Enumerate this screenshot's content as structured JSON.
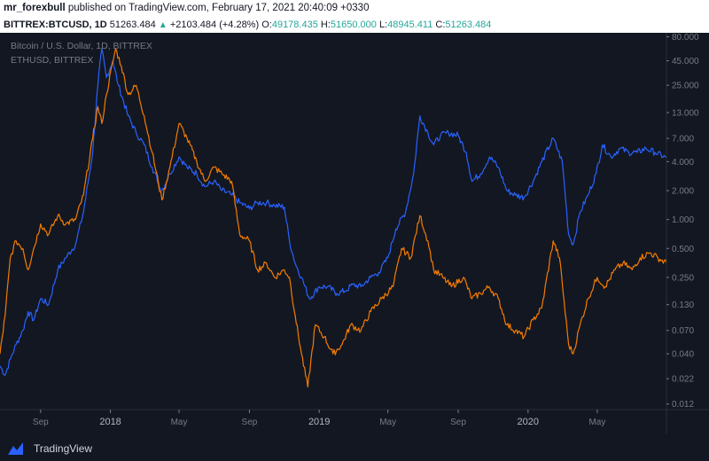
{
  "header": {
    "author": "mr_forexbull",
    "published_text": "published on TradingView.com, February 17, 2021 20:40:09 +0330"
  },
  "quote": {
    "symbol": "BITTREX:BTCUSD, 1D",
    "last": "51263.484",
    "change": "+2103.484 (+4.28%)",
    "o_label": "O:",
    "o": "49178.435",
    "h_label": "H:",
    "h": "51650.000",
    "l_label": "L:",
    "l": "48945.411",
    "c_label": "C:",
    "c": "51263.484"
  },
  "footer": {
    "brand": "TradingView"
  },
  "colors": {
    "btc_series": "#2962ff",
    "eth_series": "#f57c00",
    "background": "#131722",
    "axis_text": "#787b86"
  },
  "chart_data": {
    "type": "line",
    "legend": [
      "Bitcoin / U.S. Dollar, 1D, BITTREX",
      "ETHUSD, BITTREX"
    ],
    "y_scale": "log",
    "y_ticks": [
      "80.000",
      "45.000",
      "25.000",
      "13.000",
      "7.000",
      "4.000",
      "2.000",
      "1.000",
      "0.500",
      "0.250",
      "0.130",
      "0.070",
      "0.040",
      "0.022",
      "0.012"
    ],
    "y_tick_values": [
      80,
      45,
      25,
      13,
      7,
      4,
      2,
      1,
      0.5,
      0.25,
      0.13,
      0.07,
      0.04,
      0.022,
      0.012
    ],
    "ylim": [
      0.0105,
      88
    ],
    "x_ticks": [
      "Sep",
      "2018",
      "May",
      "Sep",
      "2019",
      "May",
      "Sep",
      "2020",
      "May"
    ],
    "x_tick_dates": [
      "2017-09-01",
      "2018-01-01",
      "2018-05-01",
      "2018-09-01",
      "2019-01-01",
      "2019-05-01",
      "2019-09-01",
      "2020-01-01",
      "2020-05-01"
    ],
    "xlim": [
      "2017-06-22",
      "2020-08-30"
    ],
    "series": [
      {
        "name": "Bitcoin / U.S. Dollar, 1D, BITTREX",
        "points": [
          [
            "2017-06-22",
            0.03
          ],
          [
            "2017-07-01",
            0.024
          ],
          [
            "2017-07-10",
            0.035
          ],
          [
            "2017-07-20",
            0.05
          ],
          [
            "2017-08-01",
            0.07
          ],
          [
            "2017-08-10",
            0.11
          ],
          [
            "2017-08-20",
            0.09
          ],
          [
            "2017-09-01",
            0.15
          ],
          [
            "2017-09-15",
            0.13
          ],
          [
            "2017-10-01",
            0.3
          ],
          [
            "2017-10-15",
            0.4
          ],
          [
            "2017-11-01",
            0.55
          ],
          [
            "2017-11-15",
            1.2
          ],
          [
            "2017-12-01",
            5.0
          ],
          [
            "2017-12-10",
            25.0
          ],
          [
            "2017-12-17",
            60.0
          ],
          [
            "2017-12-25",
            30.0
          ],
          [
            "2018-01-05",
            45.0
          ],
          [
            "2018-01-15",
            25.0
          ],
          [
            "2018-02-01",
            12.0
          ],
          [
            "2018-02-15",
            8.0
          ],
          [
            "2018-03-01",
            6.0
          ],
          [
            "2018-03-15",
            3.5
          ],
          [
            "2018-04-01",
            2.0
          ],
          [
            "2018-04-15",
            3.0
          ],
          [
            "2018-05-01",
            4.5
          ],
          [
            "2018-05-15",
            3.5
          ],
          [
            "2018-06-01",
            3.0
          ],
          [
            "2018-06-15",
            2.2
          ],
          [
            "2018-07-01",
            2.5
          ],
          [
            "2018-07-15",
            2.0
          ],
          [
            "2018-08-01",
            1.8
          ],
          [
            "2018-08-15",
            1.5
          ],
          [
            "2018-09-01",
            1.3
          ],
          [
            "2018-09-15",
            1.5
          ],
          [
            "2018-10-01",
            1.5
          ],
          [
            "2018-10-15",
            1.4
          ],
          [
            "2018-11-01",
            1.35
          ],
          [
            "2018-11-10",
            0.6
          ],
          [
            "2018-11-20",
            0.35
          ],
          [
            "2018-12-01",
            0.25
          ],
          [
            "2018-12-15",
            0.15
          ],
          [
            "2019-01-01",
            0.2
          ],
          [
            "2019-01-15",
            0.2
          ],
          [
            "2019-02-01",
            0.17
          ],
          [
            "2019-02-15",
            0.18
          ],
          [
            "2019-03-01",
            0.21
          ],
          [
            "2019-03-15",
            0.2
          ],
          [
            "2019-04-01",
            0.25
          ],
          [
            "2019-04-15",
            0.28
          ],
          [
            "2019-05-01",
            0.4
          ],
          [
            "2019-05-15",
            0.8
          ],
          [
            "2019-06-01",
            1.2
          ],
          [
            "2019-06-15",
            3.0
          ],
          [
            "2019-06-26",
            12.0
          ],
          [
            "2019-07-10",
            8.0
          ],
          [
            "2019-07-20",
            6.0
          ],
          [
            "2019-08-01",
            7.5
          ],
          [
            "2019-08-15",
            8.0
          ],
          [
            "2019-09-01",
            7.5
          ],
          [
            "2019-09-15",
            5.0
          ],
          [
            "2019-09-25",
            2.5
          ],
          [
            "2019-10-10",
            3.0
          ],
          [
            "2019-10-26",
            4.5
          ],
          [
            "2019-11-10",
            3.5
          ],
          [
            "2019-11-25",
            2.0
          ],
          [
            "2019-12-10",
            1.8
          ],
          [
            "2019-12-25",
            1.7
          ],
          [
            "2020-01-10",
            2.5
          ],
          [
            "2020-01-25",
            4.0
          ],
          [
            "2020-02-14",
            7.0
          ],
          [
            "2020-03-01",
            4.0
          ],
          [
            "2020-03-12",
            0.7
          ],
          [
            "2020-03-20",
            0.55
          ],
          [
            "2020-04-01",
            1.2
          ],
          [
            "2020-04-15",
            1.8
          ],
          [
            "2020-04-29",
            3.0
          ],
          [
            "2020-05-10",
            6.0
          ],
          [
            "2020-05-25",
            4.5
          ],
          [
            "2020-06-10",
            5.5
          ],
          [
            "2020-06-25",
            5.0
          ],
          [
            "2020-07-10",
            5.0
          ],
          [
            "2020-07-25",
            5.5
          ],
          [
            "2020-08-10",
            5.0
          ],
          [
            "2020-08-30",
            4.4
          ]
        ]
      },
      {
        "name": "ETHUSD, BITTREX",
        "points": [
          [
            "2017-06-22",
            0.04
          ],
          [
            "2017-07-01",
            0.1
          ],
          [
            "2017-07-10",
            0.4
          ],
          [
            "2017-07-20",
            0.6
          ],
          [
            "2017-08-01",
            0.5
          ],
          [
            "2017-08-10",
            0.3
          ],
          [
            "2017-08-20",
            0.5
          ],
          [
            "2017-09-01",
            0.9
          ],
          [
            "2017-09-15",
            0.7
          ],
          [
            "2017-10-01",
            1.1
          ],
          [
            "2017-10-15",
            0.9
          ],
          [
            "2017-11-01",
            1.0
          ],
          [
            "2017-11-15",
            1.8
          ],
          [
            "2017-12-01",
            7.0
          ],
          [
            "2017-12-10",
            15.0
          ],
          [
            "2017-12-17",
            10.0
          ],
          [
            "2017-12-25",
            20.0
          ],
          [
            "2018-01-10",
            60.0
          ],
          [
            "2018-01-20",
            40.0
          ],
          [
            "2018-02-01",
            20.0
          ],
          [
            "2018-02-15",
            25.0
          ],
          [
            "2018-03-01",
            12.0
          ],
          [
            "2018-03-15",
            5.0
          ],
          [
            "2018-04-01",
            1.6
          ],
          [
            "2018-04-15",
            3.5
          ],
          [
            "2018-05-01",
            10.0
          ],
          [
            "2018-05-15",
            7.0
          ],
          [
            "2018-06-01",
            4.0
          ],
          [
            "2018-06-15",
            2.5
          ],
          [
            "2018-07-01",
            3.5
          ],
          [
            "2018-07-15",
            3.0
          ],
          [
            "2018-08-01",
            2.5
          ],
          [
            "2018-08-15",
            0.7
          ],
          [
            "2018-09-01",
            0.6
          ],
          [
            "2018-09-15",
            0.3
          ],
          [
            "2018-10-01",
            0.35
          ],
          [
            "2018-10-15",
            0.25
          ],
          [
            "2018-11-01",
            0.3
          ],
          [
            "2018-11-10",
            0.25
          ],
          [
            "2018-11-20",
            0.1
          ],
          [
            "2018-12-01",
            0.04
          ],
          [
            "2018-12-12",
            0.018
          ],
          [
            "2018-12-25",
            0.08
          ],
          [
            "2019-01-10",
            0.06
          ],
          [
            "2019-01-25",
            0.04
          ],
          [
            "2019-02-10",
            0.05
          ],
          [
            "2019-02-25",
            0.08
          ],
          [
            "2019-03-15",
            0.07
          ],
          [
            "2019-04-01",
            0.11
          ],
          [
            "2019-04-20",
            0.15
          ],
          [
            "2019-05-10",
            0.2
          ],
          [
            "2019-05-25",
            0.5
          ],
          [
            "2019-06-10",
            0.4
          ],
          [
            "2019-06-26",
            1.1
          ],
          [
            "2019-07-10",
            0.6
          ],
          [
            "2019-07-20",
            0.3
          ],
          [
            "2019-08-05",
            0.25
          ],
          [
            "2019-08-20",
            0.2
          ],
          [
            "2019-09-10",
            0.25
          ],
          [
            "2019-09-25",
            0.15
          ],
          [
            "2019-10-10",
            0.17
          ],
          [
            "2019-10-25",
            0.2
          ],
          [
            "2019-11-10",
            0.15
          ],
          [
            "2019-11-25",
            0.08
          ],
          [
            "2019-12-10",
            0.07
          ],
          [
            "2019-12-25",
            0.06
          ],
          [
            "2020-01-10",
            0.09
          ],
          [
            "2020-01-25",
            0.12
          ],
          [
            "2020-02-14",
            0.6
          ],
          [
            "2020-02-25",
            0.4
          ],
          [
            "2020-03-12",
            0.05
          ],
          [
            "2020-03-20",
            0.04
          ],
          [
            "2020-04-01",
            0.08
          ],
          [
            "2020-04-15",
            0.15
          ],
          [
            "2020-05-01",
            0.25
          ],
          [
            "2020-05-15",
            0.2
          ],
          [
            "2020-06-01",
            0.3
          ],
          [
            "2020-06-15",
            0.35
          ],
          [
            "2020-07-01",
            0.3
          ],
          [
            "2020-07-15",
            0.4
          ],
          [
            "2020-08-01",
            0.45
          ],
          [
            "2020-08-15",
            0.4
          ],
          [
            "2020-08-30",
            0.35
          ]
        ]
      }
    ]
  }
}
